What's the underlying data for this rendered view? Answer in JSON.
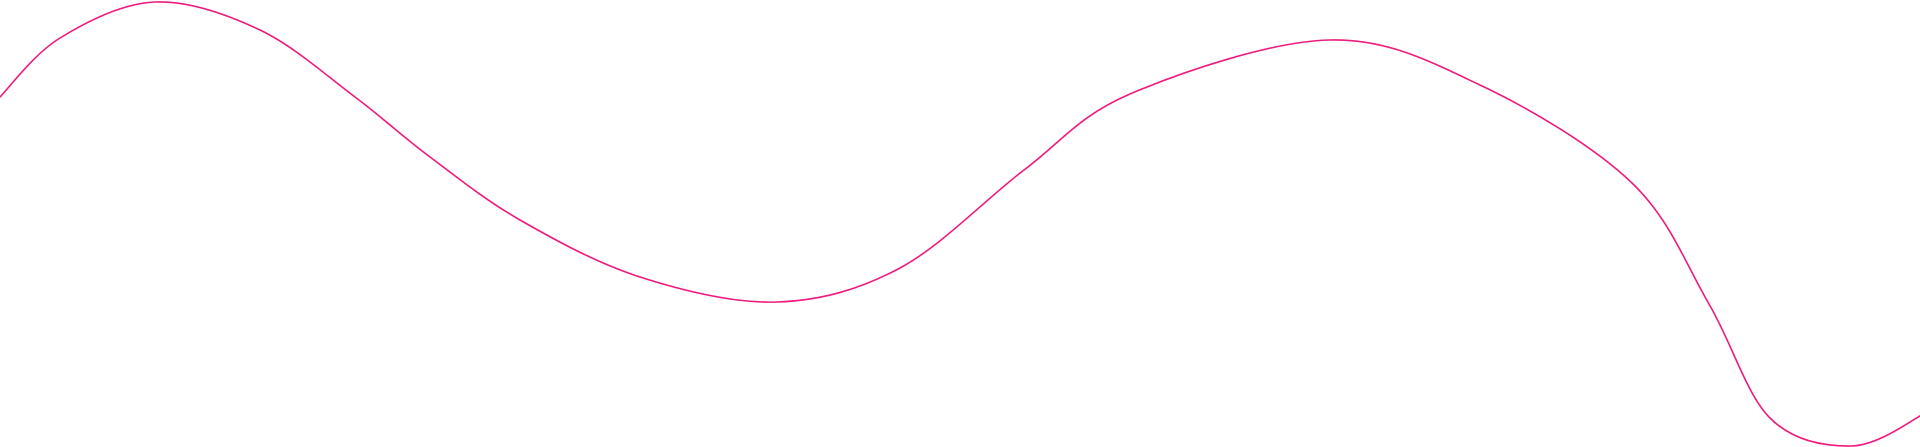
{
  "decoration": {
    "type": "wavy-line",
    "stroke_color": "#ee1a7d",
    "background_color": "#ffffff"
  }
}
